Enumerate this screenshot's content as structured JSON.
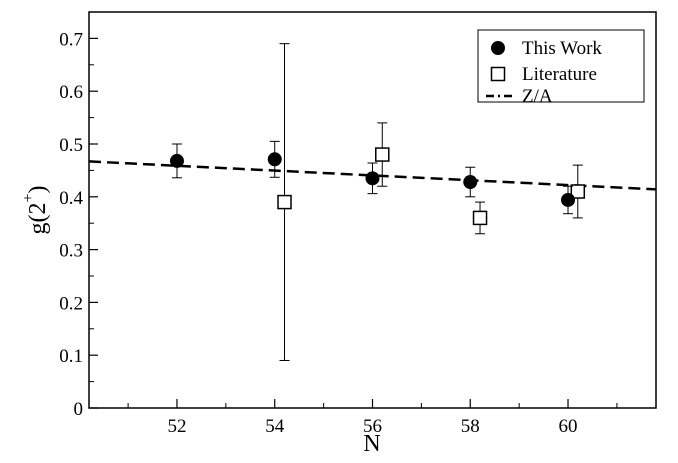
{
  "chart_data": {
    "type": "scatter",
    "title": "",
    "xlabel": "N",
    "ylabel": "g(2",
    "ylabel_sup": "+",
    "ylabel_close": ")",
    "xlim": [
      50.2,
      61.8
    ],
    "ylim": [
      0,
      0.75
    ],
    "xticks": [
      52,
      54,
      56,
      58,
      60
    ],
    "xtick_labels": [
      "52",
      "54",
      "56",
      "58",
      "60"
    ],
    "yticks": [
      0,
      0.1,
      0.2,
      0.3,
      0.4,
      0.5,
      0.6,
      0.7
    ],
    "ytick_labels": [
      "0",
      "0.1",
      "0.2",
      "0.3",
      "0.4",
      "0.5",
      "0.6",
      "0.7"
    ],
    "grid": false,
    "legend_position": "top-right",
    "series": [
      {
        "name": "This Work",
        "marker": "filled-circle",
        "color": "#000000",
        "points": [
          {
            "x": 52,
            "y": 0.468,
            "yerr_low": 0.436,
            "yerr_high": 0.5
          },
          {
            "x": 54,
            "y": 0.471,
            "yerr_low": 0.437,
            "yerr_high": 0.505
          },
          {
            "x": 56,
            "y": 0.435,
            "yerr_low": 0.406,
            "yerr_high": 0.464
          },
          {
            "x": 58,
            "y": 0.428,
            "yerr_low": 0.4,
            "yerr_high": 0.456
          },
          {
            "x": 60,
            "y": 0.394,
            "yerr_low": 0.368,
            "yerr_high": 0.42
          }
        ]
      },
      {
        "name": "Literature",
        "marker": "open-square",
        "color": "#000000",
        "points": [
          {
            "x": 54.2,
            "y": 0.39,
            "yerr_low": 0.09,
            "yerr_high": 0.69
          },
          {
            "x": 56.2,
            "y": 0.48,
            "yerr_low": 0.42,
            "yerr_high": 0.54
          },
          {
            "x": 58.2,
            "y": 0.36,
            "yerr_low": 0.33,
            "yerr_high": 0.39
          },
          {
            "x": 60.2,
            "y": 0.41,
            "yerr_low": 0.36,
            "yerr_high": 0.46
          }
        ]
      },
      {
        "name": "Z/A",
        "line_style": "dashed",
        "color": "#000000",
        "line": [
          {
            "x": 50.2,
            "y": 0.467
          },
          {
            "x": 61.8,
            "y": 0.414
          }
        ]
      }
    ]
  }
}
